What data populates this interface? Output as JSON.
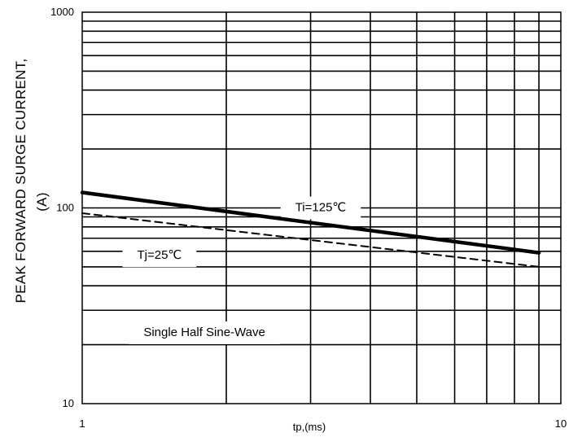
{
  "chart_data": {
    "type": "line",
    "xscale": "log",
    "yscale": "log",
    "xlim": [
      1,
      10
    ],
    "ylim": [
      10,
      1000
    ],
    "grid": true,
    "xlabel": "tp,(ms)",
    "ylabel_line1": "PEAK FORWARD SURGE CURRENT,",
    "ylabel_line2": "(A)",
    "xticks": [
      {
        "value": 1,
        "label": "1"
      },
      {
        "value": 10,
        "label": "10"
      }
    ],
    "yticks": [
      {
        "value": 10,
        "label": "10"
      },
      {
        "value": 100,
        "label": "100"
      },
      {
        "value": 1000,
        "label": "1000"
      }
    ],
    "series": [
      {
        "name": "Ti=125℃",
        "style": "solid",
        "color": "#000000",
        "x": [
          1,
          9
        ],
        "y": [
          120,
          59
        ]
      },
      {
        "name": "Tj=25℃",
        "style": "dashed",
        "color": "#000000",
        "x": [
          1,
          9
        ],
        "y": [
          94,
          50
        ]
      }
    ],
    "annotations": [
      {
        "text": "Ti=125℃",
        "x": 3.15,
        "y": 100
      },
      {
        "text": "Tj=25℃",
        "x": 1.45,
        "y": 57
      },
      {
        "text": "Single Half Sine-Wave",
        "x": 1.8,
        "y": 23
      }
    ]
  }
}
